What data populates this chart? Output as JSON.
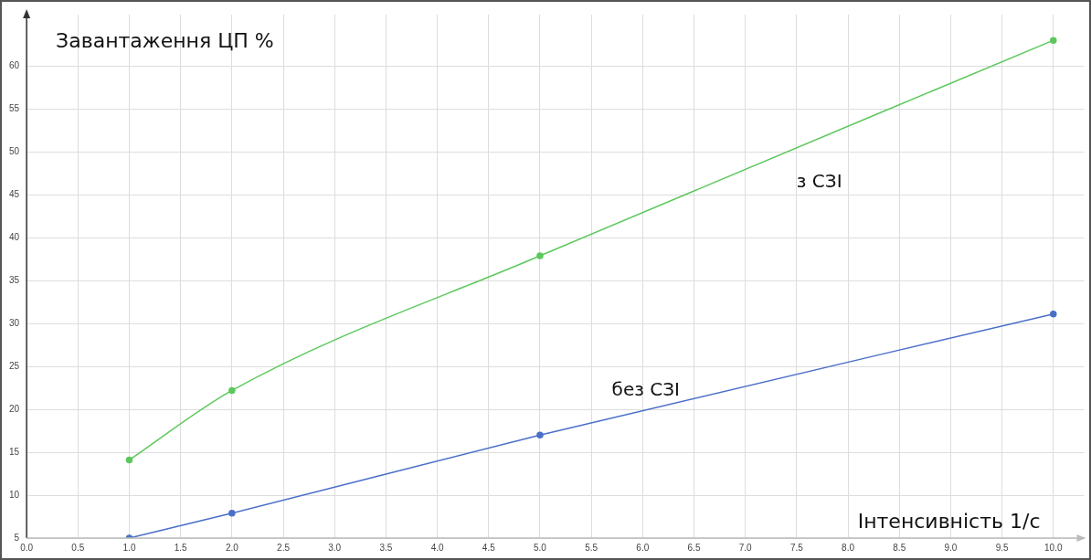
{
  "chart_data": {
    "type": "line",
    "ylabel": "Завантаження ЦП %",
    "xlabel": "Інтенсивність 1/с",
    "x": [
      1,
      2,
      5,
      10
    ],
    "series": [
      {
        "name": "з СЗІ",
        "color": "#5cc85c",
        "values": [
          14.1,
          22.2,
          37.9,
          63.0
        ]
      },
      {
        "name": "без СЗІ",
        "color": "#4a6fc8",
        "values": [
          5.0,
          7.9,
          17.0,
          31.1
        ]
      }
    ],
    "xlim": [
      0,
      10.3
    ],
    "xticks": [
      {
        "value": 0,
        "label": "0.0"
      },
      {
        "value": 0.5,
        "label": "0.5"
      },
      {
        "value": 1,
        "label": "1.0"
      },
      {
        "value": 1.5,
        "label": "1.5"
      },
      {
        "value": 2,
        "label": "2.0"
      },
      {
        "value": 2.5,
        "label": "2.5"
      },
      {
        "value": 3,
        "label": "3.0"
      },
      {
        "value": 3.5,
        "label": "3.5"
      },
      {
        "value": 4,
        "label": "4.0"
      },
      {
        "value": 4.5,
        "label": "4.5"
      },
      {
        "value": 5,
        "label": "5.0"
      },
      {
        "value": 5.5,
        "label": "5.5"
      },
      {
        "value": 6,
        "label": "6.0"
      },
      {
        "value": 6.5,
        "label": "6.5"
      },
      {
        "value": 7,
        "label": "7.0"
      },
      {
        "value": 7.5,
        "label": "7.5"
      },
      {
        "value": 8,
        "label": "8.0"
      },
      {
        "value": 8.5,
        "label": "8.5"
      },
      {
        "value": 9,
        "label": "9.0"
      },
      {
        "value": 9.5,
        "label": "9.5"
      },
      {
        "value": 10,
        "label": "10.0"
      }
    ],
    "ylim": [
      5,
      66
    ],
    "yticks": [
      5,
      10,
      15,
      20,
      25,
      30,
      35,
      40,
      45,
      50,
      55,
      60
    ],
    "grid": true,
    "legend": false,
    "marker": "circle",
    "line_style": "solid"
  }
}
